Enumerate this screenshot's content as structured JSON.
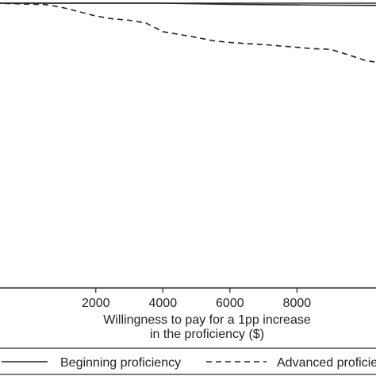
{
  "chart_data": {
    "type": "line",
    "xlabel_line1": "Willingness to pay for a 1pp increase",
    "xlabel_line2": "in the proficiency ($)",
    "ylabel": "",
    "x_ticks": [
      2000,
      4000,
      6000,
      8000
    ],
    "x_tick_labels": [
      "2000",
      "4000",
      "6000",
      "8000"
    ],
    "xlim": [
      -1000,
      10500
    ],
    "ylim": [
      0,
      1
    ],
    "grid": false,
    "legend_position": "bottom",
    "series": [
      {
        "name": "Beginning proficiency",
        "line_style": "solid",
        "color": "#222222",
        "x": [
          -1000,
          0,
          1000,
          2000,
          3000,
          3800,
          4000,
          5000,
          6000,
          7000,
          8000,
          9000,
          10500
        ],
        "y": [
          1.0,
          1.0,
          1.0,
          1.0,
          1.0,
          1.0,
          1.0,
          0.998,
          0.996,
          0.995,
          0.994,
          0.993,
          0.992
        ]
      },
      {
        "name": "Advanced proficiency",
        "line_style": "dashed",
        "color": "#222222",
        "x": [
          -1000,
          500,
          1000,
          1500,
          2000,
          2500,
          3000,
          3500,
          4000,
          4500,
          5000,
          5500,
          6000,
          6500,
          7000,
          7500,
          8000,
          8500,
          9000,
          9500,
          10000,
          10500
        ],
        "y": [
          1.0,
          0.995,
          0.985,
          0.97,
          0.955,
          0.945,
          0.94,
          0.93,
          0.9,
          0.89,
          0.88,
          0.868,
          0.862,
          0.858,
          0.855,
          0.85,
          0.845,
          0.84,
          0.838,
          0.82,
          0.8,
          0.79
        ]
      }
    ]
  }
}
